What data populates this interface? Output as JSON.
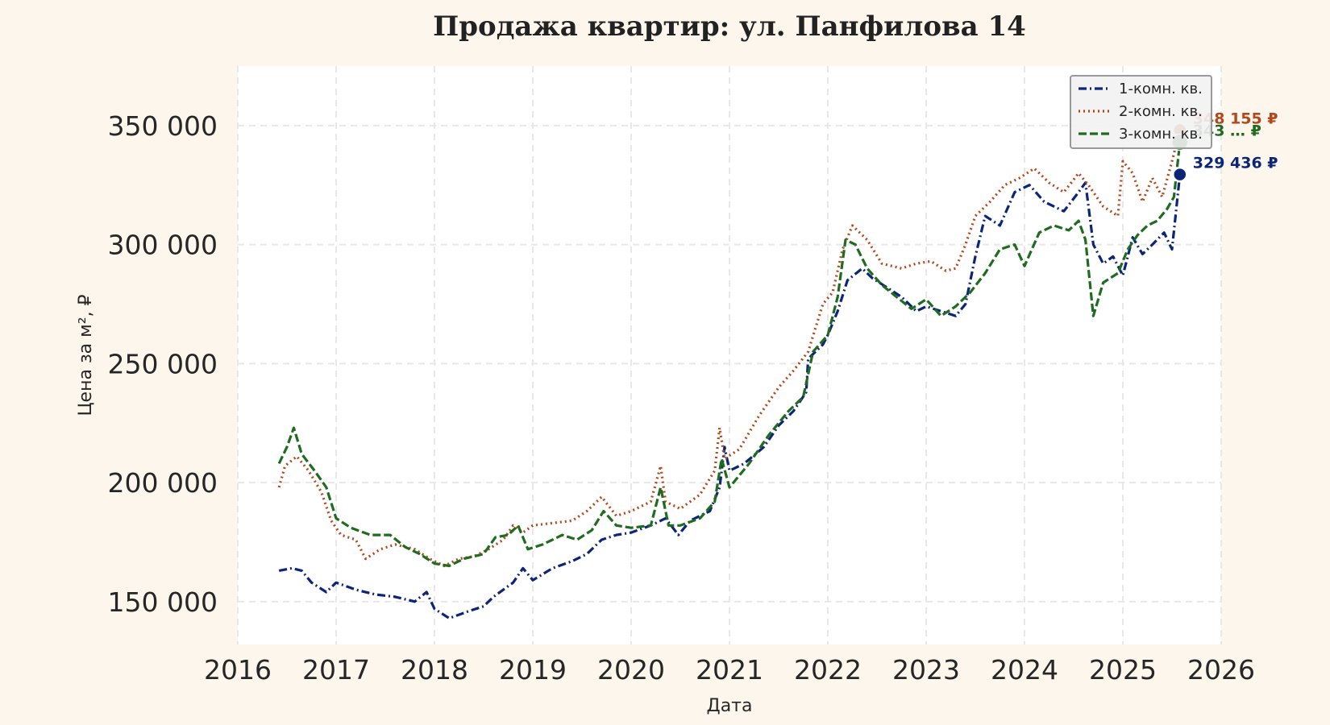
{
  "chart_data": {
    "type": "line",
    "title": "Продажа квартир: ул. Панфилова 14",
    "xlabel": "Дата",
    "ylabel": "Цена за м², ₽",
    "xlim": [
      2016.0,
      2026.0
    ],
    "ylim": [
      132000,
      375000
    ],
    "xticks": [
      2016,
      2017,
      2018,
      2019,
      2020,
      2021,
      2022,
      2023,
      2024,
      2025,
      2026
    ],
    "xtick_labels": [
      "2016",
      "2017",
      "2018",
      "2019",
      "2020",
      "2021",
      "2022",
      "2023",
      "2024",
      "2025",
      "2026"
    ],
    "yticks": [
      150000,
      200000,
      250000,
      300000,
      350000
    ],
    "ytick_labels": [
      "150 000",
      "200 000",
      "250 000",
      "300 000",
      "350 000"
    ],
    "grid": true,
    "legend_position": "top-right",
    "series": [
      {
        "name": "1-комн. кв.",
        "color": "#0c2577",
        "style": "dashdot",
        "end_label": "329 436 ₽",
        "end_value": 329436,
        "points": [
          [
            2016.42,
            163000
          ],
          [
            2016.55,
            164000
          ],
          [
            2016.65,
            163000
          ],
          [
            2016.75,
            158000
          ],
          [
            2016.9,
            154000
          ],
          [
            2017.0,
            158000
          ],
          [
            2017.2,
            155000
          ],
          [
            2017.4,
            153000
          ],
          [
            2017.6,
            152000
          ],
          [
            2017.8,
            150000
          ],
          [
            2017.92,
            154000
          ],
          [
            2018.0,
            147000
          ],
          [
            2018.15,
            143000
          ],
          [
            2018.35,
            146000
          ],
          [
            2018.5,
            148000
          ],
          [
            2018.6,
            152000
          ],
          [
            2018.8,
            158000
          ],
          [
            2018.9,
            164000
          ],
          [
            2019.0,
            159000
          ],
          [
            2019.2,
            164000
          ],
          [
            2019.4,
            167000
          ],
          [
            2019.55,
            170000
          ],
          [
            2019.7,
            176000
          ],
          [
            2019.85,
            178000
          ],
          [
            2020.0,
            179000
          ],
          [
            2020.2,
            182000
          ],
          [
            2020.35,
            185000
          ],
          [
            2020.48,
            178000
          ],
          [
            2020.6,
            184000
          ],
          [
            2020.8,
            188000
          ],
          [
            2020.9,
            198000
          ],
          [
            2020.95,
            215000
          ],
          [
            2021.0,
            205000
          ],
          [
            2021.15,
            208000
          ],
          [
            2021.35,
            215000
          ],
          [
            2021.5,
            224000
          ],
          [
            2021.65,
            230000
          ],
          [
            2021.78,
            238000
          ],
          [
            2021.8,
            252000
          ],
          [
            2021.95,
            258000
          ],
          [
            2022.0,
            262000
          ],
          [
            2022.1,
            272000
          ],
          [
            2022.2,
            285000
          ],
          [
            2022.35,
            290000
          ],
          [
            2022.45,
            286000
          ],
          [
            2022.6,
            282000
          ],
          [
            2022.75,
            278000
          ],
          [
            2022.9,
            272000
          ],
          [
            2023.0,
            274000
          ],
          [
            2023.15,
            272000
          ],
          [
            2023.3,
            270000
          ],
          [
            2023.4,
            275000
          ],
          [
            2023.5,
            295000
          ],
          [
            2023.6,
            312000
          ],
          [
            2023.75,
            308000
          ],
          [
            2023.9,
            322000
          ],
          [
            2024.05,
            325000
          ],
          [
            2024.2,
            318000
          ],
          [
            2024.4,
            314000
          ],
          [
            2024.55,
            322000
          ],
          [
            2024.62,
            326000
          ],
          [
            2024.7,
            300000
          ],
          [
            2024.8,
            292000
          ],
          [
            2024.9,
            295000
          ],
          [
            2025.0,
            287000
          ],
          [
            2025.1,
            303000
          ],
          [
            2025.2,
            296000
          ],
          [
            2025.3,
            300000
          ],
          [
            2025.42,
            305000
          ],
          [
            2025.5,
            298000
          ],
          [
            2025.58,
            329436
          ]
        ]
      },
      {
        "name": "2-комн. кв.",
        "color": "#b3471a",
        "style": "dotted",
        "end_label": "348 155 ₽",
        "end_value": 348155,
        "points": [
          [
            2016.42,
            198000
          ],
          [
            2016.48,
            207000
          ],
          [
            2016.6,
            211000
          ],
          [
            2016.72,
            205000
          ],
          [
            2016.85,
            196000
          ],
          [
            2016.95,
            184000
          ],
          [
            2017.05,
            178000
          ],
          [
            2017.2,
            176000
          ],
          [
            2017.3,
            168000
          ],
          [
            2017.45,
            172000
          ],
          [
            2017.6,
            174000
          ],
          [
            2017.8,
            172000
          ],
          [
            2017.95,
            168000
          ],
          [
            2018.1,
            165000
          ],
          [
            2018.25,
            168000
          ],
          [
            2018.4,
            169000
          ],
          [
            2018.55,
            172000
          ],
          [
            2018.7,
            176000
          ],
          [
            2018.8,
            182000
          ],
          [
            2018.9,
            179000
          ],
          [
            2019.0,
            182000
          ],
          [
            2019.2,
            183000
          ],
          [
            2019.4,
            184000
          ],
          [
            2019.55,
            188000
          ],
          [
            2019.7,
            194000
          ],
          [
            2019.85,
            186000
          ],
          [
            2020.0,
            188000
          ],
          [
            2020.2,
            192000
          ],
          [
            2020.3,
            207000
          ],
          [
            2020.35,
            192000
          ],
          [
            2020.5,
            189000
          ],
          [
            2020.7,
            195000
          ],
          [
            2020.85,
            205000
          ],
          [
            2020.9,
            223000
          ],
          [
            2020.95,
            210000
          ],
          [
            2021.1,
            214000
          ],
          [
            2021.3,
            228000
          ],
          [
            2021.5,
            240000
          ],
          [
            2021.65,
            247000
          ],
          [
            2021.8,
            255000
          ],
          [
            2021.95,
            275000
          ],
          [
            2022.05,
            280000
          ],
          [
            2022.15,
            298000
          ],
          [
            2022.25,
            308000
          ],
          [
            2022.4,
            302000
          ],
          [
            2022.55,
            292000
          ],
          [
            2022.75,
            290000
          ],
          [
            2022.9,
            292000
          ],
          [
            2023.05,
            293000
          ],
          [
            2023.2,
            289000
          ],
          [
            2023.3,
            290000
          ],
          [
            2023.4,
            300000
          ],
          [
            2023.5,
            312000
          ],
          [
            2023.65,
            318000
          ],
          [
            2023.8,
            325000
          ],
          [
            2023.95,
            328000
          ],
          [
            2024.1,
            332000
          ],
          [
            2024.25,
            326000
          ],
          [
            2024.4,
            322000
          ],
          [
            2024.55,
            330000
          ],
          [
            2024.65,
            325000
          ],
          [
            2024.8,
            316000
          ],
          [
            2024.95,
            312000
          ],
          [
            2025.0,
            335000
          ],
          [
            2025.1,
            330000
          ],
          [
            2025.2,
            318000
          ],
          [
            2025.3,
            328000
          ],
          [
            2025.4,
            320000
          ],
          [
            2025.5,
            335000
          ],
          [
            2025.58,
            348155
          ]
        ]
      },
      {
        "name": "3-комн. кв.",
        "color": "#1f6b1f",
        "style": "dashed",
        "end_label": "343 … ₽",
        "end_value": 343000,
        "points": [
          [
            2016.42,
            208000
          ],
          [
            2016.5,
            215000
          ],
          [
            2016.57,
            223000
          ],
          [
            2016.65,
            212000
          ],
          [
            2016.78,
            205000
          ],
          [
            2016.9,
            198000
          ],
          [
            2017.0,
            185000
          ],
          [
            2017.15,
            181000
          ],
          [
            2017.35,
            178000
          ],
          [
            2017.55,
            178000
          ],
          [
            2017.7,
            173000
          ],
          [
            2017.85,
            170000
          ],
          [
            2018.0,
            166000
          ],
          [
            2018.15,
            165000
          ],
          [
            2018.3,
            168000
          ],
          [
            2018.5,
            170000
          ],
          [
            2018.62,
            177000
          ],
          [
            2018.75,
            178000
          ],
          [
            2018.85,
            182000
          ],
          [
            2018.95,
            172000
          ],
          [
            2019.1,
            174000
          ],
          [
            2019.3,
            178000
          ],
          [
            2019.45,
            176000
          ],
          [
            2019.6,
            180000
          ],
          [
            2019.72,
            188000
          ],
          [
            2019.85,
            182000
          ],
          [
            2020.0,
            181000
          ],
          [
            2020.2,
            182000
          ],
          [
            2020.3,
            198000
          ],
          [
            2020.38,
            182000
          ],
          [
            2020.5,
            182000
          ],
          [
            2020.7,
            185000
          ],
          [
            2020.85,
            192000
          ],
          [
            2020.92,
            210000
          ],
          [
            2021.0,
            198000
          ],
          [
            2021.2,
            208000
          ],
          [
            2021.4,
            220000
          ],
          [
            2021.6,
            230000
          ],
          [
            2021.75,
            236000
          ],
          [
            2021.85,
            255000
          ],
          [
            2022.0,
            262000
          ],
          [
            2022.1,
            278000
          ],
          [
            2022.18,
            302000
          ],
          [
            2022.28,
            300000
          ],
          [
            2022.4,
            290000
          ],
          [
            2022.55,
            283000
          ],
          [
            2022.7,
            278000
          ],
          [
            2022.85,
            273000
          ],
          [
            2023.0,
            277000
          ],
          [
            2023.15,
            270000
          ],
          [
            2023.3,
            274000
          ],
          [
            2023.45,
            280000
          ],
          [
            2023.6,
            288000
          ],
          [
            2023.75,
            298000
          ],
          [
            2023.9,
            300000
          ],
          [
            2024.0,
            291000
          ],
          [
            2024.15,
            305000
          ],
          [
            2024.3,
            308000
          ],
          [
            2024.45,
            306000
          ],
          [
            2024.55,
            310000
          ],
          [
            2024.62,
            302000
          ],
          [
            2024.7,
            270000
          ],
          [
            2024.8,
            284000
          ],
          [
            2024.95,
            288000
          ],
          [
            2025.05,
            298000
          ],
          [
            2025.15,
            304000
          ],
          [
            2025.25,
            308000
          ],
          [
            2025.35,
            310000
          ],
          [
            2025.45,
            315000
          ],
          [
            2025.52,
            320000
          ],
          [
            2025.58,
            343000
          ]
        ]
      }
    ]
  }
}
